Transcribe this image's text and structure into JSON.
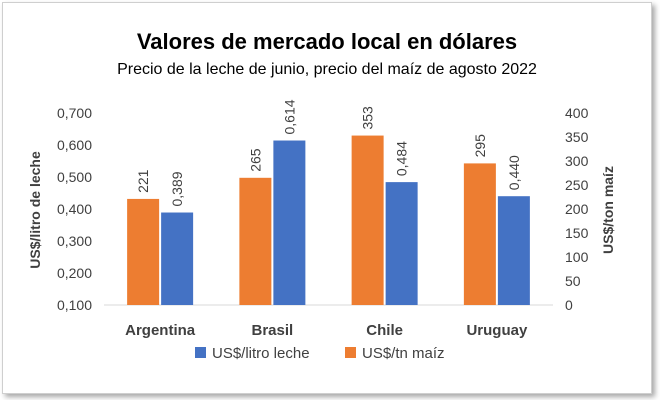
{
  "chart_data": {
    "type": "bar",
    "title": "Valores de mercado local en dólares",
    "subtitle": "Precio de la leche de junio, precio del maíz de agosto 2022",
    "categories": [
      "Argentina",
      "Brasil",
      "Chile",
      "Uruguay"
    ],
    "y_left": {
      "label": "US$/litro de leche",
      "ylim": [
        0.1,
        0.7
      ],
      "ticks": [
        "0,100",
        "0,200",
        "0,300",
        "0,400",
        "0,500",
        "0,600",
        "0,700"
      ],
      "tick_values": [
        0.1,
        0.2,
        0.3,
        0.4,
        0.5,
        0.6,
        0.7
      ]
    },
    "y_right": {
      "label": "US$/ton maíz",
      "ylim": [
        0,
        400
      ],
      "ticks": [
        "0",
        "50",
        "100",
        "150",
        "200",
        "250",
        "300",
        "350",
        "400"
      ],
      "tick_values": [
        0,
        50,
        100,
        150,
        200,
        250,
        300,
        350,
        400
      ]
    },
    "series": [
      {
        "name": "US$/tn maíz",
        "axis": "right",
        "color": "#ED7D31",
        "values": [
          221,
          265,
          353,
          295
        ],
        "labels": [
          "221",
          "265",
          "353",
          "295"
        ]
      },
      {
        "name": "US$/litro leche",
        "axis": "left",
        "color": "#4472C4",
        "values": [
          0.389,
          0.614,
          0.484,
          0.44
        ],
        "labels": [
          "0,389",
          "0,614",
          "0,484",
          "0,440"
        ]
      }
    ],
    "legend": {
      "position": "bottom",
      "order": [
        "US$/litro leche",
        "US$/tn maíz"
      ]
    },
    "grid": false
  }
}
